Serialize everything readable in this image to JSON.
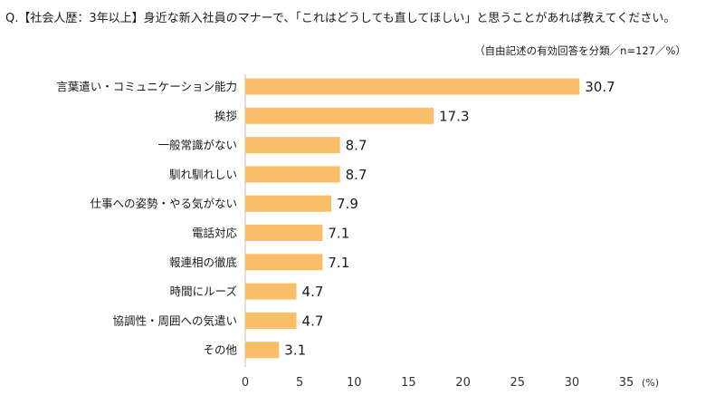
{
  "question": "Q.【社会人歴：3年以上】身近な新入社員のマナーで、「これはどうしても直してほしい」と思うことがあれば教えてください。",
  "note": "（自由記述の有効回答を分類／n=127／%）",
  "colors": {
    "bar": "#F9BE68",
    "axis": "#BFBFBF"
  },
  "chart_data": {
    "type": "bar",
    "orientation": "horizontal",
    "categories": [
      "言葉遣い・コミュニケーション能力",
      "挨拶",
      "一般常識がない",
      "馴れ馴れしい",
      "仕事への姿勢・やる気がない",
      "電話対応",
      "報連相の徹底",
      "時間にルーズ",
      "協調性・周囲への気遣い",
      "その他"
    ],
    "values": [
      30.7,
      17.3,
      8.7,
      8.7,
      7.9,
      7.1,
      7.1,
      4.7,
      4.7,
      3.1
    ],
    "value_labels": [
      "30.7",
      "17.3",
      "8.7",
      "8.7",
      "7.9",
      "7.1",
      "7.1",
      "4.7",
      "4.7",
      "3.1"
    ],
    "xlim": [
      0,
      35
    ],
    "xticks": [
      "0",
      "5",
      "10",
      "15",
      "20",
      "25",
      "30",
      "35"
    ],
    "xunit": "(%)",
    "grid": false
  }
}
